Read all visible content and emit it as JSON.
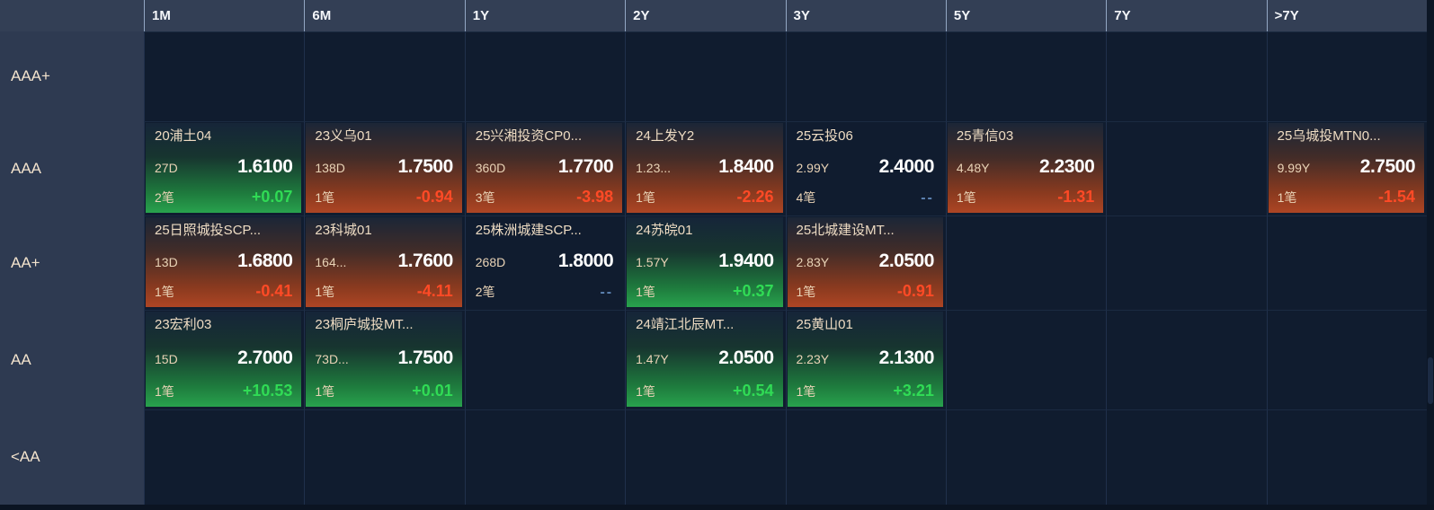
{
  "header": {
    "corner": "",
    "columns": [
      "1M",
      "6M",
      "1Y",
      "2Y",
      "3Y",
      "5Y",
      "7Y",
      ">7Y"
    ]
  },
  "colors": {
    "up": "#30db55",
    "down": "#ff4a26",
    "flat_dash": "#5f85b5",
    "header_bg": "#333f55",
    "label_bg": "#2e3a51",
    "cell_bg": "#101c2f",
    "name_text": "#eedcc3",
    "value_text": "#ffffff"
  },
  "rows": [
    {
      "label": "AAA+",
      "cells": [
        null,
        null,
        null,
        null,
        null,
        null,
        null,
        null
      ]
    },
    {
      "label": "AAA",
      "cells": [
        {
          "name": "20浦土04",
          "tenor": "27D",
          "yield": "1.6100",
          "trades": "2笔",
          "change": "+0.07",
          "trend": "up"
        },
        {
          "name": "23义乌01",
          "tenor": "138D",
          "yield": "1.7500",
          "trades": "1笔",
          "change": "-0.94",
          "trend": "down"
        },
        {
          "name": "25兴湘投资CP0...",
          "tenor": "360D",
          "yield": "1.7700",
          "trades": "3笔",
          "change": "-3.98",
          "trend": "down"
        },
        {
          "name": "24上发Y2",
          "tenor": "1.23...",
          "yield": "1.8400",
          "trades": "1笔",
          "change": "-2.26",
          "trend": "down"
        },
        {
          "name": "25云投06",
          "tenor": "2.99Y",
          "yield": "2.4000",
          "trades": "4笔",
          "change": "--",
          "trend": "flat"
        },
        {
          "name": "25青信03",
          "tenor": "4.48Y",
          "yield": "2.2300",
          "trades": "1笔",
          "change": "-1.31",
          "trend": "down"
        },
        null,
        {
          "name": "25乌城投MTN0...",
          "tenor": "9.99Y",
          "yield": "2.7500",
          "trades": "1笔",
          "change": "-1.54",
          "trend": "down"
        }
      ]
    },
    {
      "label": "AA+",
      "cells": [
        {
          "name": "25日照城投SCP...",
          "tenor": "13D",
          "yield": "1.6800",
          "trades": "1笔",
          "change": "-0.41",
          "trend": "down"
        },
        {
          "name": "23科城01",
          "tenor": "164...",
          "yield": "1.7600",
          "trades": "1笔",
          "change": "-4.11",
          "trend": "down"
        },
        {
          "name": "25株洲城建SCP...",
          "tenor": "268D",
          "yield": "1.8000",
          "trades": "2笔",
          "change": "--",
          "trend": "flat"
        },
        {
          "name": "24苏皖01",
          "tenor": "1.57Y",
          "yield": "1.9400",
          "trades": "1笔",
          "change": "+0.37",
          "trend": "up"
        },
        {
          "name": "25北城建设MT...",
          "tenor": "2.83Y",
          "yield": "2.0500",
          "trades": "1笔",
          "change": "-0.91",
          "trend": "down"
        },
        null,
        null,
        null
      ]
    },
    {
      "label": "AA",
      "cells": [
        {
          "name": "23宏利03",
          "tenor": "15D",
          "yield": "2.7000",
          "trades": "1笔",
          "change": "+10.53",
          "trend": "up"
        },
        {
          "name": "23桐庐城投MT...",
          "tenor": "73D...",
          "yield": "1.7500",
          "trades": "1笔",
          "change": "+0.01",
          "trend": "up"
        },
        null,
        {
          "name": "24靖江北辰MT...",
          "tenor": "1.47Y",
          "yield": "2.0500",
          "trades": "1笔",
          "change": "+0.54",
          "trend": "up"
        },
        {
          "name": "25黄山01",
          "tenor": "2.23Y",
          "yield": "2.1300",
          "trades": "1笔",
          "change": "+3.21",
          "trend": "up"
        },
        null,
        null,
        null
      ]
    },
    {
      "label": "<AA",
      "cells": [
        null,
        null,
        null,
        null,
        null,
        null,
        null,
        null
      ]
    }
  ]
}
